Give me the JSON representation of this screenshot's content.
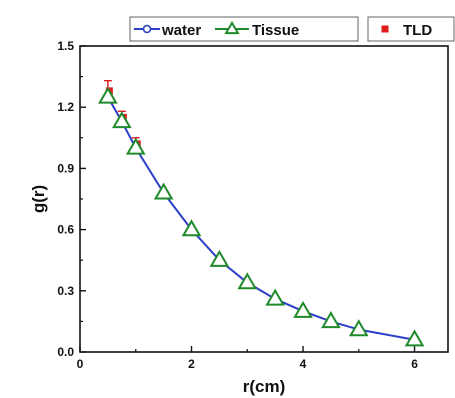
{
  "chart_data": {
    "type": "line",
    "title": "",
    "xlabel": "r(cm)",
    "ylabel": "g(r)",
    "xlim": [
      0,
      6.6
    ],
    "ylim": [
      0,
      1.5
    ],
    "xticks": [
      "0",
      "2",
      "4",
      "6"
    ],
    "yticks": [
      "0.0",
      "0.3",
      "0.6",
      "0.9",
      "1.2",
      "1.5"
    ],
    "grid": false,
    "legend_position": "top",
    "series": [
      {
        "name": "water",
        "marker": "open-circle",
        "color": "#2b3fc7",
        "x": [
          0.5,
          0.75,
          1.0,
          1.5,
          2.0,
          2.5,
          3.0,
          3.5,
          4.0,
          4.5,
          5.0,
          6.0
        ],
        "y": [
          1.25,
          1.13,
          1.0,
          0.78,
          0.6,
          0.45,
          0.34,
          0.26,
          0.2,
          0.15,
          0.11,
          0.06
        ]
      },
      {
        "name": "Tissue",
        "marker": "triangle",
        "color": "#1f8a2a",
        "x": [
          0.5,
          0.75,
          1.0,
          1.5,
          2.0,
          2.5,
          3.0,
          3.5,
          4.0,
          4.5,
          5.0,
          6.0
        ],
        "y": [
          1.25,
          1.13,
          1.0,
          0.78,
          0.6,
          0.45,
          0.34,
          0.26,
          0.2,
          0.15,
          0.11,
          0.06
        ]
      },
      {
        "name": "TLD",
        "marker": "square",
        "color": "#e01b1b",
        "x": [
          0.5,
          0.75,
          1.0,
          1.5,
          2.0,
          2.5,
          3.0,
          3.5,
          4.0,
          4.5,
          5.0,
          6.0
        ],
        "y": [
          1.28,
          1.15,
          1.02,
          0.77,
          0.59,
          0.44,
          0.33,
          0.25,
          0.19,
          0.14,
          0.1,
          0.05
        ],
        "error": [
          0.05,
          0.03,
          0.03,
          0.02,
          0.02,
          0.02,
          0.01,
          0.01,
          0.01,
          0.01,
          0.01,
          0.01
        ]
      }
    ]
  }
}
